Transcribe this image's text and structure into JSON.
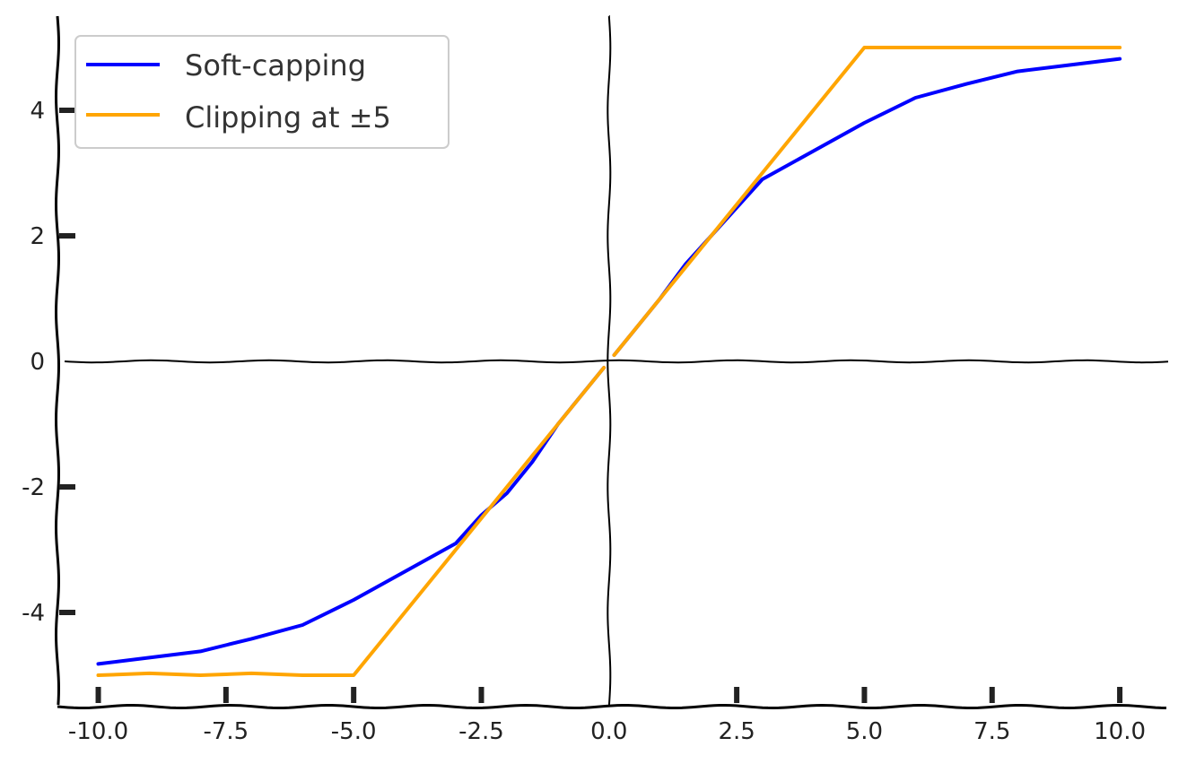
{
  "chart_data": {
    "type": "line",
    "title": "",
    "xlabel": "",
    "ylabel": "",
    "xlim": [
      -10.8,
      11.0
    ],
    "ylim": [
      -5.5,
      5.5
    ],
    "grid": false,
    "legend_position": "top-left",
    "x_ticks": [
      {
        "value": -10,
        "label": "-10.0"
      },
      {
        "value": -7.5,
        "label": "-7.5"
      },
      {
        "value": -5,
        "label": "-5.0"
      },
      {
        "value": -2.5,
        "label": "-2.5"
      },
      {
        "value": 0,
        "label": "0.0"
      },
      {
        "value": 2.5,
        "label": "2.5"
      },
      {
        "value": 5,
        "label": "5.0"
      },
      {
        "value": 7.5,
        "label": "7.5"
      },
      {
        "value": 10,
        "label": "10.0"
      }
    ],
    "y_ticks": [
      {
        "value": 4,
        "label": "4"
      },
      {
        "value": 2,
        "label": "2"
      },
      {
        "value": 0,
        "label": "0"
      },
      {
        "value": -2,
        "label": "-2"
      },
      {
        "value": -4,
        "label": "-4"
      }
    ],
    "series": [
      {
        "name": "Soft-capping",
        "color": "#0000ff",
        "x": [
          -10,
          -9,
          -8,
          -7,
          -6,
          -5,
          -4,
          -3,
          -2.5,
          -2,
          -1.5,
          -1,
          -0.5,
          -0.1,
          0.1,
          0.5,
          1,
          1.5,
          2,
          2.5,
          3,
          4,
          5,
          6,
          7,
          8,
          9,
          10
        ],
        "y": [
          -4.82,
          -4.72,
          -4.62,
          -4.42,
          -4.2,
          -3.8,
          -3.35,
          -2.9,
          -2.45,
          -2.1,
          -1.6,
          -1.0,
          -0.5,
          -0.1,
          0.1,
          0.5,
          1.0,
          1.55,
          2.0,
          2.45,
          2.9,
          3.35,
          3.8,
          4.2,
          4.42,
          4.62,
          4.72,
          4.82
        ]
      },
      {
        "name": "Clipping at ±5",
        "color": "#ffa500",
        "x": [
          -10,
          -9,
          -8,
          -7,
          -6,
          -5,
          -4,
          -3,
          -2,
          -1,
          -0.1,
          0.1,
          1,
          2,
          3,
          4,
          5,
          6,
          7,
          8,
          9,
          10
        ],
        "y": [
          -5.0,
          -4.97,
          -5.0,
          -4.97,
          -5.0,
          -5.0,
          -4.0,
          -3.0,
          -2.0,
          -1.0,
          -0.1,
          0.1,
          1.0,
          2.0,
          3.0,
          4.0,
          5.0,
          5.0,
          5.0,
          5.0,
          5.0,
          5.0
        ]
      }
    ]
  }
}
